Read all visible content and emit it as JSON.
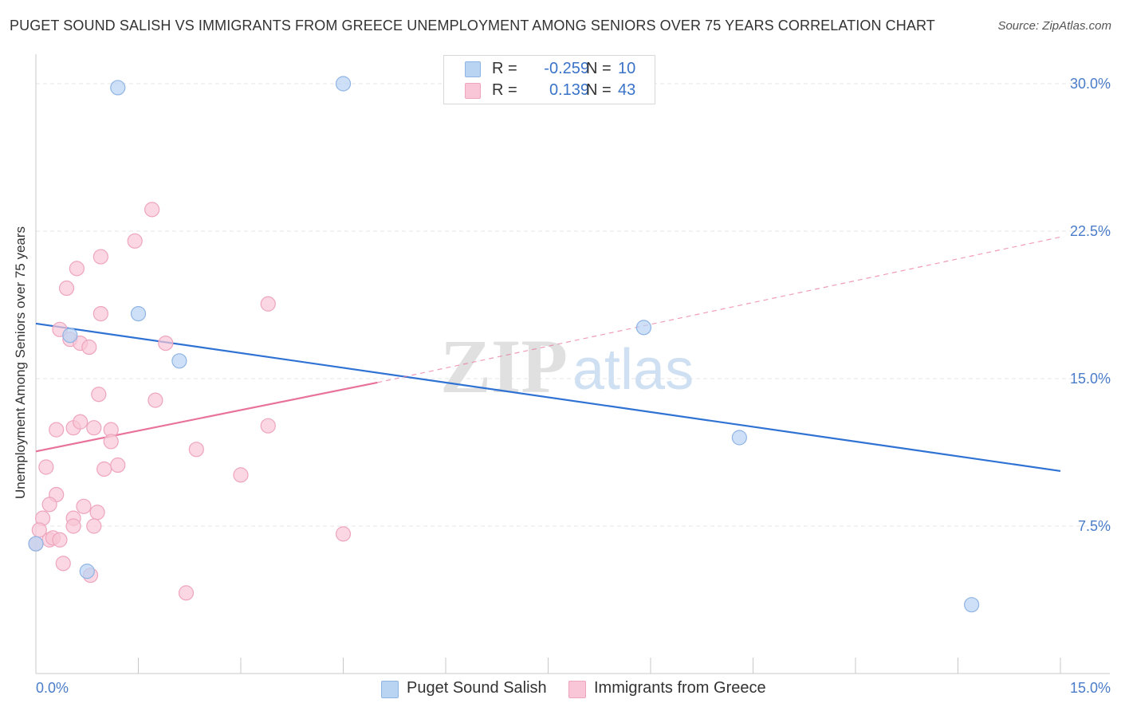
{
  "header": {
    "title": "PUGET SOUND SALISH VS IMMIGRANTS FROM GREECE UNEMPLOYMENT AMONG SENIORS OVER 75 YEARS CORRELATION CHART",
    "source": "Source: ZipAtlas.com"
  },
  "watermark": {
    "zip": "ZIP",
    "atlas": "atlas"
  },
  "legend": {
    "rows": [
      {
        "r_label": "R =",
        "r_value": "-0.259",
        "n_label": "N =",
        "n_value": "10"
      },
      {
        "r_label": "R =",
        "r_value": "0.139",
        "n_label": "N =",
        "n_value": "43"
      }
    ]
  },
  "colors": {
    "series1_fill": "#b9d3f3",
    "series1_stroke": "#8fb4e4",
    "series1_line": "#2f72d4",
    "series2_fill": "#f8c6d6",
    "series2_stroke": "#eea5bd",
    "series2_line": "#e8729a",
    "axis_text": "#4a7cc9",
    "grid": "#e4e4e4"
  },
  "chart_data": {
    "type": "scatter",
    "title": "PUGET SOUND SALISH VS IMMIGRANTS FROM GREECE UNEMPLOYMENT AMONG SENIORS OVER 75 YEARS CORRELATION CHART",
    "xlabel": "",
    "ylabel": "Unemployment Among Seniors over 75 years",
    "xlim": [
      0,
      15
    ],
    "ylim": [
      0,
      31.5
    ],
    "x_tick_labels": [
      "0.0%",
      "15.0%"
    ],
    "y_ticks": [
      7.5,
      15.0,
      22.5,
      30.0
    ],
    "y_tick_labels": [
      "7.5%",
      "15.0%",
      "22.5%",
      "30.0%"
    ],
    "grid": true,
    "legend_position": "bottom",
    "series": [
      {
        "name": "Puget Sound Salish",
        "points": [
          [
            1.2,
            29.8
          ],
          [
            4.5,
            30.0
          ],
          [
            1.5,
            18.3
          ],
          [
            0.5,
            17.2
          ],
          [
            2.1,
            15.9
          ],
          [
            8.9,
            17.6
          ],
          [
            10.3,
            12.0
          ],
          [
            0.0,
            6.6
          ],
          [
            0.75,
            5.2
          ],
          [
            13.7,
            3.5
          ]
        ],
        "trend": {
          "x": [
            0.0,
            15.0
          ],
          "y": [
            17.8,
            10.3
          ],
          "style": "solid"
        }
      },
      {
        "name": "Immigrants from Greece",
        "points": [
          [
            1.7,
            23.6
          ],
          [
            1.45,
            22.0
          ],
          [
            0.95,
            21.2
          ],
          [
            0.6,
            20.6
          ],
          [
            0.45,
            19.6
          ],
          [
            3.4,
            18.8
          ],
          [
            0.95,
            18.3
          ],
          [
            0.35,
            17.5
          ],
          [
            0.5,
            17.0
          ],
          [
            0.65,
            16.8
          ],
          [
            0.78,
            16.6
          ],
          [
            1.9,
            16.8
          ],
          [
            0.92,
            14.2
          ],
          [
            1.75,
            13.9
          ],
          [
            0.3,
            12.4
          ],
          [
            0.55,
            12.5
          ],
          [
            0.65,
            12.8
          ],
          [
            0.85,
            12.5
          ],
          [
            1.1,
            12.4
          ],
          [
            3.4,
            12.6
          ],
          [
            1.1,
            11.8
          ],
          [
            2.35,
            11.4
          ],
          [
            0.15,
            10.5
          ],
          [
            1.0,
            10.4
          ],
          [
            1.2,
            10.6
          ],
          [
            3.0,
            10.1
          ],
          [
            0.3,
            9.1
          ],
          [
            0.2,
            8.6
          ],
          [
            0.7,
            8.5
          ],
          [
            0.55,
            7.9
          ],
          [
            0.9,
            8.2
          ],
          [
            0.1,
            7.9
          ],
          [
            0.55,
            7.5
          ],
          [
            0.85,
            7.5
          ],
          [
            0.05,
            7.3
          ],
          [
            0.2,
            6.8
          ],
          [
            0.25,
            6.9
          ],
          [
            0.35,
            6.8
          ],
          [
            4.5,
            7.1
          ],
          [
            0.4,
            5.6
          ],
          [
            0.8,
            5.0
          ],
          [
            2.2,
            4.1
          ],
          [
            0.0,
            6.6
          ]
        ],
        "trend": {
          "x": [
            0.0,
            5.0
          ],
          "y": [
            11.3,
            14.8
          ],
          "style": "solid",
          "extended_to": [
            15.0,
            22.2
          ],
          "extended_style": "dashed"
        }
      }
    ]
  },
  "bottom_legend": [
    {
      "label": "Puget Sound Salish"
    },
    {
      "label": "Immigrants from Greece"
    }
  ]
}
